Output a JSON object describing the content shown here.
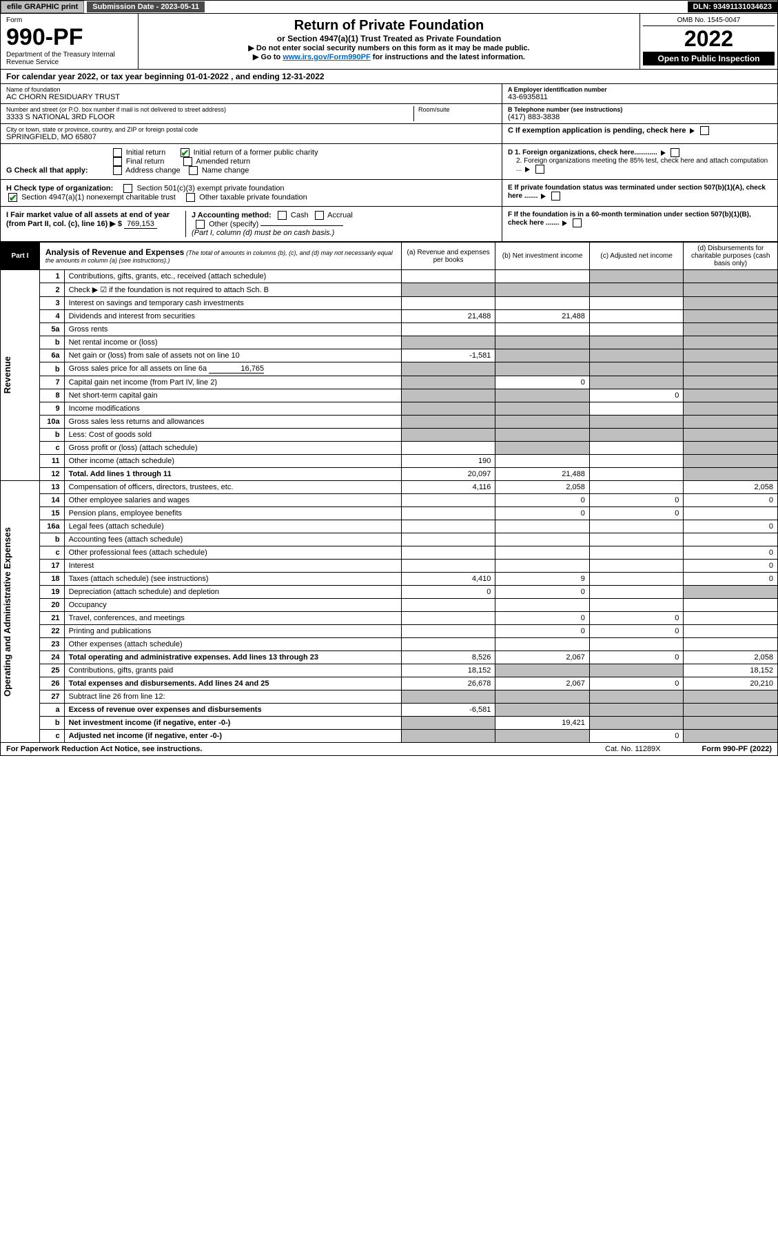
{
  "top": {
    "efile": "efile GRAPHIC print",
    "subdate_label": "Submission Date - 2023-05-11",
    "dln": "DLN: 93491131034623"
  },
  "header": {
    "form": "Form",
    "num": "990-PF",
    "dept": "Department of the Treasury\nInternal Revenue Service",
    "title": "Return of Private Foundation",
    "subtitle1": "or Section 4947(a)(1) Trust Treated as Private Foundation",
    "subtitle2a": "▶ Do not enter social security numbers on this form as it may be made public.",
    "subtitle2b": "▶ Go to ",
    "subtitle2_link": "www.irs.gov/Form990PF",
    "subtitle2c": " for instructions and the latest information.",
    "omb": "OMB No. 1545-0047",
    "year": "2022",
    "open": "Open to Public Inspection"
  },
  "calyear": "For calendar year 2022, or tax year beginning 01-01-2022                        , and ending 12-31-2022",
  "name": {
    "label": "Name of foundation",
    "value": "AC CHORN RESIDUARY TRUST"
  },
  "addr": {
    "label": "Number and street (or P.O. box number if mail is not delivered to street address)",
    "value": "3333 S NATIONAL 3RD FLOOR",
    "room": "Room/suite"
  },
  "city": {
    "label": "City or town, state or province, country, and ZIP or foreign postal code",
    "value": "SPRINGFIELD, MO  65807"
  },
  "ein": {
    "label": "A Employer identification number",
    "value": "43-6935811"
  },
  "phone": {
    "label": "B Telephone number (see instructions)",
    "value": "(417) 883-3838"
  },
  "c": "C If exemption application is pending, check here",
  "g": {
    "label": "G Check all that apply:",
    "o1": "Initial return",
    "o2": "Final return",
    "o3": "Address change",
    "o4": "Initial return of a former public charity",
    "o5": "Amended return",
    "o6": "Name change"
  },
  "h": {
    "label": "H Check type of organization:",
    "o1": "Section 501(c)(3) exempt private foundation",
    "o2": "Section 4947(a)(1) nonexempt charitable trust",
    "o3": "Other taxable private foundation"
  },
  "d": {
    "l1": "D 1. Foreign organizations, check here............",
    "l2": "2. Foreign organizations meeting the 85% test, check here and attach computation ..."
  },
  "e": "E If private foundation status was terminated under section 507(b)(1)(A), check here .......",
  "i": {
    "label": "I Fair market value of all assets at end of year (from Part II, col. (c), line 16) ▶ $",
    "value": "769,153"
  },
  "j": {
    "label": "J Accounting method:",
    "o1": "Cash",
    "o2": "Accrual",
    "o3": "Other (specify)",
    "note": "(Part I, column (d) must be on cash basis.)"
  },
  "f": "F If the foundation is in a 60-month termination under section 507(b)(1)(B), check here .......",
  "part1": {
    "tab": "Part I",
    "title": "Analysis of Revenue and Expenses",
    "note": "(The total of amounts in columns (b), (c), and (d) may not necessarily equal the amounts in column (a) (see instructions).)",
    "cols": {
      "a": "(a)  Revenue and expenses per books",
      "b": "(b)  Net investment income",
      "c": "(c)  Adjusted net income",
      "d": "(d)  Disbursements for charitable purposes (cash basis only)"
    }
  },
  "rev_label": "Revenue",
  "exp_label": "Operating and Administrative Expenses",
  "lines": [
    {
      "n": "1",
      "d": "Contributions, gifts, grants, etc., received (attach schedule)",
      "a": "",
      "b": "",
      "c": "",
      "dd": "",
      "sh": [
        "c",
        "d"
      ]
    },
    {
      "n": "2",
      "d": "Check ▶ ☑ if the foundation is not required to attach Sch. B",
      "a": "",
      "b": "",
      "c": "",
      "dd": "",
      "sh": [
        "a",
        "b",
        "c",
        "d"
      ]
    },
    {
      "n": "3",
      "d": "Interest on savings and temporary cash investments",
      "a": "",
      "b": "",
      "c": "",
      "dd": "",
      "sh": [
        "d"
      ]
    },
    {
      "n": "4",
      "d": "Dividends and interest from securities",
      "a": "21,488",
      "b": "21,488",
      "c": "",
      "dd": "",
      "sh": [
        "d"
      ]
    },
    {
      "n": "5a",
      "d": "Gross rents",
      "a": "",
      "b": "",
      "c": "",
      "dd": "",
      "sh": [
        "d"
      ]
    },
    {
      "n": "b",
      "d": "Net rental income or (loss)",
      "a": "",
      "b": "",
      "c": "",
      "dd": "",
      "sh": [
        "a",
        "b",
        "c",
        "d"
      ]
    },
    {
      "n": "6a",
      "d": "Net gain or (loss) from sale of assets not on line 10",
      "a": "-1,581",
      "b": "",
      "c": "",
      "dd": "",
      "sh": [
        "b",
        "c",
        "d"
      ]
    },
    {
      "n": "b",
      "d": "Gross sales price for all assets on line 6a",
      "inline": "16,765",
      "a": "",
      "b": "",
      "c": "",
      "dd": "",
      "sh": [
        "a",
        "b",
        "c",
        "d"
      ]
    },
    {
      "n": "7",
      "d": "Capital gain net income (from Part IV, line 2)",
      "a": "",
      "b": "0",
      "c": "",
      "dd": "",
      "sh": [
        "a",
        "c",
        "d"
      ]
    },
    {
      "n": "8",
      "d": "Net short-term capital gain",
      "a": "",
      "b": "",
      "c": "0",
      "dd": "",
      "sh": [
        "a",
        "b",
        "d"
      ]
    },
    {
      "n": "9",
      "d": "Income modifications",
      "a": "",
      "b": "",
      "c": "",
      "dd": "",
      "sh": [
        "a",
        "b",
        "d"
      ]
    },
    {
      "n": "10a",
      "d": "Gross sales less returns and allowances",
      "a": "",
      "b": "",
      "c": "",
      "dd": "",
      "sh": [
        "a",
        "b",
        "c",
        "d"
      ]
    },
    {
      "n": "b",
      "d": "Less: Cost of goods sold",
      "a": "",
      "b": "",
      "c": "",
      "dd": "",
      "sh": [
        "a",
        "b",
        "c",
        "d"
      ]
    },
    {
      "n": "c",
      "d": "Gross profit or (loss) (attach schedule)",
      "a": "",
      "b": "",
      "c": "",
      "dd": "",
      "sh": [
        "b",
        "d"
      ]
    },
    {
      "n": "11",
      "d": "Other income (attach schedule)",
      "a": "190",
      "b": "",
      "c": "",
      "dd": "",
      "sh": [
        "d"
      ]
    },
    {
      "n": "12",
      "d": "Total. Add lines 1 through 11",
      "bold": true,
      "a": "20,097",
      "b": "21,488",
      "c": "",
      "dd": "",
      "sh": [
        "d"
      ]
    },
    {
      "n": "13",
      "d": "Compensation of officers, directors, trustees, etc.",
      "a": "4,116",
      "b": "2,058",
      "c": "",
      "dd": "2,058"
    },
    {
      "n": "14",
      "d": "Other employee salaries and wages",
      "a": "",
      "b": "0",
      "c": "0",
      "dd": "0"
    },
    {
      "n": "15",
      "d": "Pension plans, employee benefits",
      "a": "",
      "b": "0",
      "c": "0",
      "dd": ""
    },
    {
      "n": "16a",
      "d": "Legal fees (attach schedule)",
      "a": "",
      "b": "",
      "c": "",
      "dd": "0"
    },
    {
      "n": "b",
      "d": "Accounting fees (attach schedule)",
      "a": "",
      "b": "",
      "c": "",
      "dd": ""
    },
    {
      "n": "c",
      "d": "Other professional fees (attach schedule)",
      "a": "",
      "b": "",
      "c": "",
      "dd": "0"
    },
    {
      "n": "17",
      "d": "Interest",
      "a": "",
      "b": "",
      "c": "",
      "dd": "0"
    },
    {
      "n": "18",
      "d": "Taxes (attach schedule) (see instructions)",
      "a": "4,410",
      "b": "9",
      "c": "",
      "dd": "0"
    },
    {
      "n": "19",
      "d": "Depreciation (attach schedule) and depletion",
      "a": "0",
      "b": "0",
      "c": "",
      "dd": "",
      "sh": [
        "d"
      ]
    },
    {
      "n": "20",
      "d": "Occupancy",
      "a": "",
      "b": "",
      "c": "",
      "dd": ""
    },
    {
      "n": "21",
      "d": "Travel, conferences, and meetings",
      "a": "",
      "b": "0",
      "c": "0",
      "dd": ""
    },
    {
      "n": "22",
      "d": "Printing and publications",
      "a": "",
      "b": "0",
      "c": "0",
      "dd": ""
    },
    {
      "n": "23",
      "d": "Other expenses (attach schedule)",
      "a": "",
      "b": "",
      "c": "",
      "dd": ""
    },
    {
      "n": "24",
      "d": "Total operating and administrative expenses. Add lines 13 through 23",
      "bold": true,
      "a": "8,526",
      "b": "2,067",
      "c": "0",
      "dd": "2,058"
    },
    {
      "n": "25",
      "d": "Contributions, gifts, grants paid",
      "a": "18,152",
      "b": "",
      "c": "",
      "dd": "18,152",
      "sh": [
        "b",
        "c"
      ]
    },
    {
      "n": "26",
      "d": "Total expenses and disbursements. Add lines 24 and 25",
      "bold": true,
      "a": "26,678",
      "b": "2,067",
      "c": "0",
      "dd": "20,210"
    },
    {
      "n": "27",
      "d": "Subtract line 26 from line 12:",
      "a": "",
      "b": "",
      "c": "",
      "dd": "",
      "sh": [
        "a",
        "b",
        "c",
        "d"
      ]
    },
    {
      "n": "a",
      "d": "Excess of revenue over expenses and disbursements",
      "bold": true,
      "a": "-6,581",
      "b": "",
      "c": "",
      "dd": "",
      "sh": [
        "b",
        "c",
        "d"
      ]
    },
    {
      "n": "b",
      "d": "Net investment income (if negative, enter -0-)",
      "bold": true,
      "a": "",
      "b": "19,421",
      "c": "",
      "dd": "",
      "sh": [
        "a",
        "c",
        "d"
      ]
    },
    {
      "n": "c",
      "d": "Adjusted net income (if negative, enter -0-)",
      "bold": true,
      "a": "",
      "b": "",
      "c": "0",
      "dd": "",
      "sh": [
        "a",
        "b",
        "d"
      ]
    }
  ],
  "footer": {
    "l": "For Paperwork Reduction Act Notice, see instructions.",
    "c": "Cat. No. 11289X",
    "r": "Form 990-PF (2022)"
  }
}
